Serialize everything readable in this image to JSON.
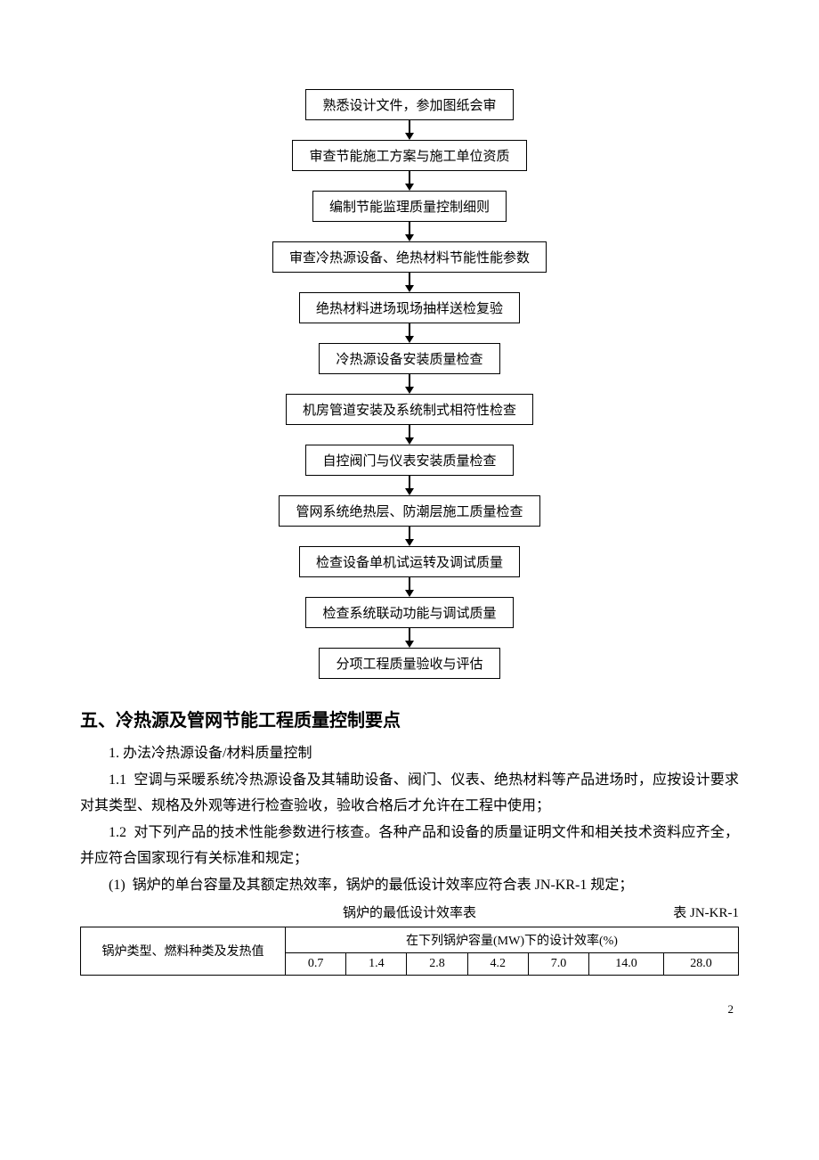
{
  "flowchart": {
    "nodes": [
      {
        "label": "熟悉设计文件，参加图纸会审"
      },
      {
        "label": "审查节能施工方案与施工单位资质"
      },
      {
        "label": "编制节能监理质量控制细则"
      },
      {
        "label": "审查冷热源设备、绝热材料节能性能参数"
      },
      {
        "label": "绝热材料进场现场抽样送检复验"
      },
      {
        "label": "冷热源设备安装质量检查"
      },
      {
        "label": "机房管道安装及系统制式相符性检查"
      },
      {
        "label": "自控阀门与仪表安装质量检查"
      },
      {
        "label": "管网系统绝热层、防潮层施工质量检查"
      },
      {
        "label": "检查设备单机试运转及调试质量"
      },
      {
        "label": "检查系统联动功能与调试质量"
      },
      {
        "label": "分项工程质量验收与评估"
      }
    ],
    "box_border_color": "#000000",
    "box_bg_color": "#ffffff",
    "arrow_color": "#000000",
    "font_size": 15
  },
  "section": {
    "heading": "五、冷热源及管网节能工程质量控制要点",
    "paragraphs": [
      {
        "num": "1.",
        "text": "办法冷热源设备/材料质量控制"
      },
      {
        "num": "1.1",
        "text": "空调与采暖系统冷热源设备及其辅助设备、阀门、仪表、绝热材料等产品进场时，应按设计要求对其类型、规格及外观等进行检查验收，验收合格后才允许在工程中使用；"
      },
      {
        "num": "1.2",
        "text": "对下列产品的技术性能参数进行核查。各种产品和设备的质量证明文件和相关技术资料应齐全，并应符合国家现行有关标准和规定；"
      },
      {
        "num": "(1)",
        "text": "锅炉的单台容量及其额定热效率，锅炉的最低设计效率应符合表 JN-KR-1 规定；"
      }
    ]
  },
  "table": {
    "caption": "锅炉的最低设计效率表",
    "caption_right": "表 JN-KR-1",
    "row_header": "锅炉类型、燃料种类及发热值",
    "header_span": "在下列锅炉容量(MW)下的设计效率(%)",
    "capacities": [
      "0.7",
      "1.4",
      "2.8",
      "4.2",
      "7.0",
      "14.0",
      "28.0"
    ]
  },
  "page_number": "2",
  "colors": {
    "text": "#000000",
    "background": "#ffffff",
    "border": "#000000"
  }
}
